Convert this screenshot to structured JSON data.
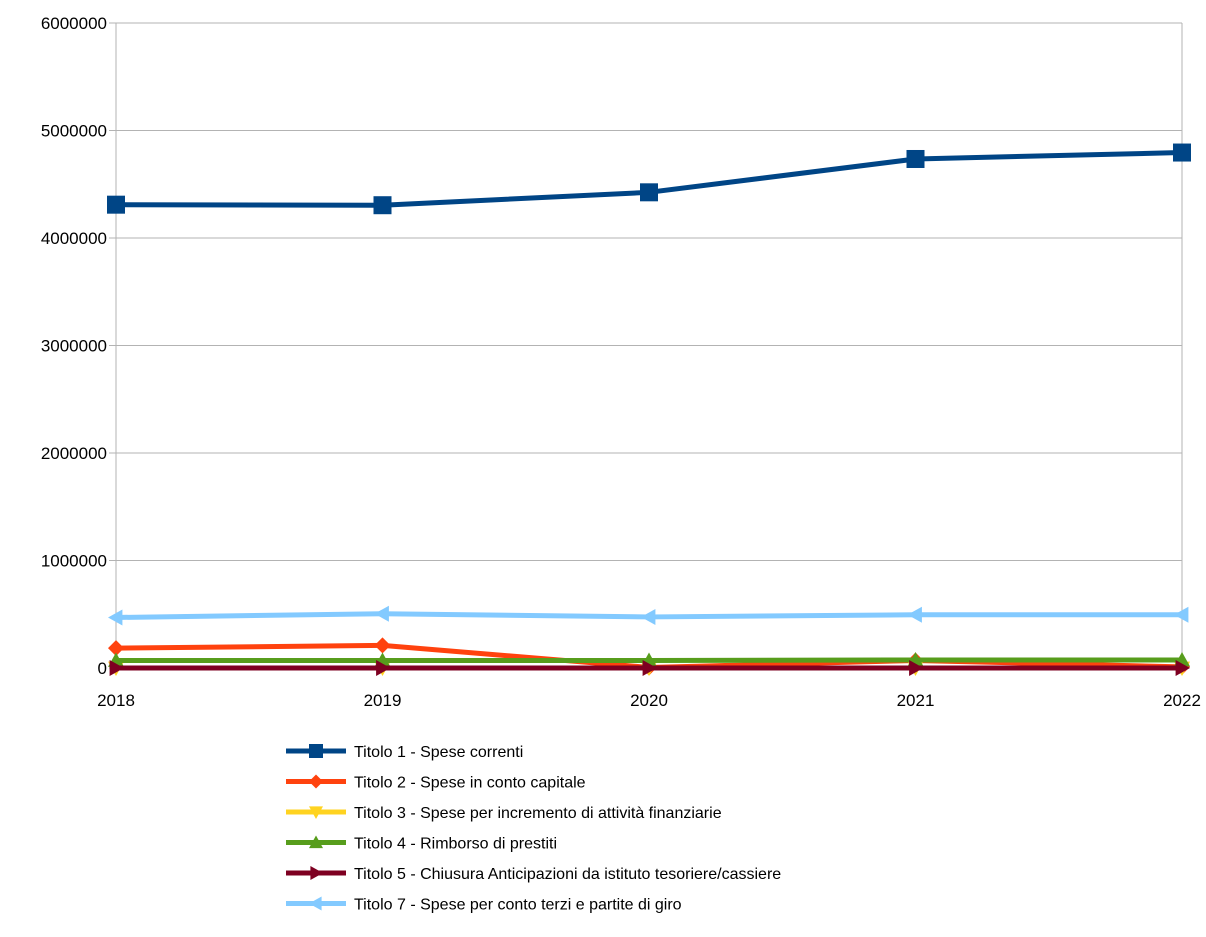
{
  "chart_data": {
    "type": "line",
    "title": "",
    "xlabel": "",
    "ylabel": "",
    "categories": [
      "2018",
      "2019",
      "2020",
      "2021",
      "2022"
    ],
    "ylim": [
      0,
      6000000
    ],
    "yticks": [
      0,
      1000000,
      2000000,
      3000000,
      4000000,
      5000000,
      6000000
    ],
    "ytick_labels": [
      "0",
      "1000000",
      "2000000",
      "3000000",
      "4000000",
      "5000000",
      "6000000"
    ],
    "grid": "horizontal",
    "legend_position": "bottom",
    "series": [
      {
        "name": "Titolo 1 - Spese correnti",
        "color": "#004586",
        "marker": "square",
        "values": [
          4310000,
          4305000,
          4425000,
          4735000,
          4795000
        ]
      },
      {
        "name": "Titolo 2 - Spese in conto capitale",
        "color": "#ff420e",
        "marker": "diamond",
        "values": [
          185000,
          210000,
          5000,
          70000,
          10000
        ]
      },
      {
        "name": "Titolo 3 - Spese per incremento di attività finanziarie",
        "color": "#ffd320",
        "marker": "triangle-down",
        "values": [
          0,
          0,
          0,
          0,
          0
        ]
      },
      {
        "name": "Titolo 4 - Rimborso di prestiti",
        "color": "#579d1c",
        "marker": "triangle-up",
        "values": [
          70000,
          70000,
          70000,
          75000,
          75000
        ]
      },
      {
        "name": "Titolo 5 - Chiusura Anticipazioni da istituto tesoriere/cassiere",
        "color": "#7e0021",
        "marker": "triangle-right",
        "values": [
          0,
          0,
          0,
          0,
          0
        ]
      },
      {
        "name": "Titolo 7 - Spese per conto terzi e partite di giro",
        "color": "#83caff",
        "marker": "triangle-left",
        "values": [
          470000,
          505000,
          475000,
          495000,
          495000
        ]
      }
    ]
  }
}
